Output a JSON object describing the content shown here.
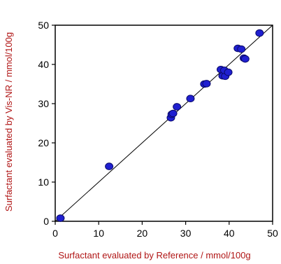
{
  "chart_data": {
    "type": "scatter",
    "xlabel": "Surfactant evaluated by Reference / mmol/100g",
    "ylabel": "Surfactant evaluated by Vis-NR / mmol/100g",
    "xlim": [
      0,
      50
    ],
    "ylim": [
      0,
      50
    ],
    "x_ticks": [
      0,
      10,
      20,
      30,
      40,
      50
    ],
    "y_ticks": [
      0,
      10,
      20,
      30,
      40,
      50
    ],
    "grid": false,
    "reference_line": {
      "from": [
        0,
        0
      ],
      "to": [
        50,
        50
      ]
    },
    "series": [
      {
        "points": [
          {
            "x": 1.2,
            "y": 0.8
          },
          {
            "x": 12.4,
            "y": 14.0
          },
          {
            "x": 26.6,
            "y": 26.4
          },
          {
            "x": 26.8,
            "y": 27.3
          },
          {
            "x": 27.1,
            "y": 27.5
          },
          {
            "x": 28.0,
            "y": 29.2
          },
          {
            "x": 31.1,
            "y": 31.3
          },
          {
            "x": 34.3,
            "y": 35.0
          },
          {
            "x": 34.8,
            "y": 35.1
          },
          {
            "x": 38.1,
            "y": 38.7
          },
          {
            "x": 38.5,
            "y": 37.1
          },
          {
            "x": 39.1,
            "y": 37.0
          },
          {
            "x": 38.9,
            "y": 38.5
          },
          {
            "x": 39.8,
            "y": 38.0
          },
          {
            "x": 42.0,
            "y": 44.1
          },
          {
            "x": 42.8,
            "y": 43.9
          },
          {
            "x": 43.4,
            "y": 41.6
          },
          {
            "x": 43.7,
            "y": 41.4
          },
          {
            "x": 47.0,
            "y": 48.0
          }
        ]
      }
    ],
    "colors": {
      "marker_fill": "#1f1fd0",
      "marker_stroke": "#0a0a6a",
      "axis_title": "#b01515",
      "line": "#000000"
    }
  }
}
